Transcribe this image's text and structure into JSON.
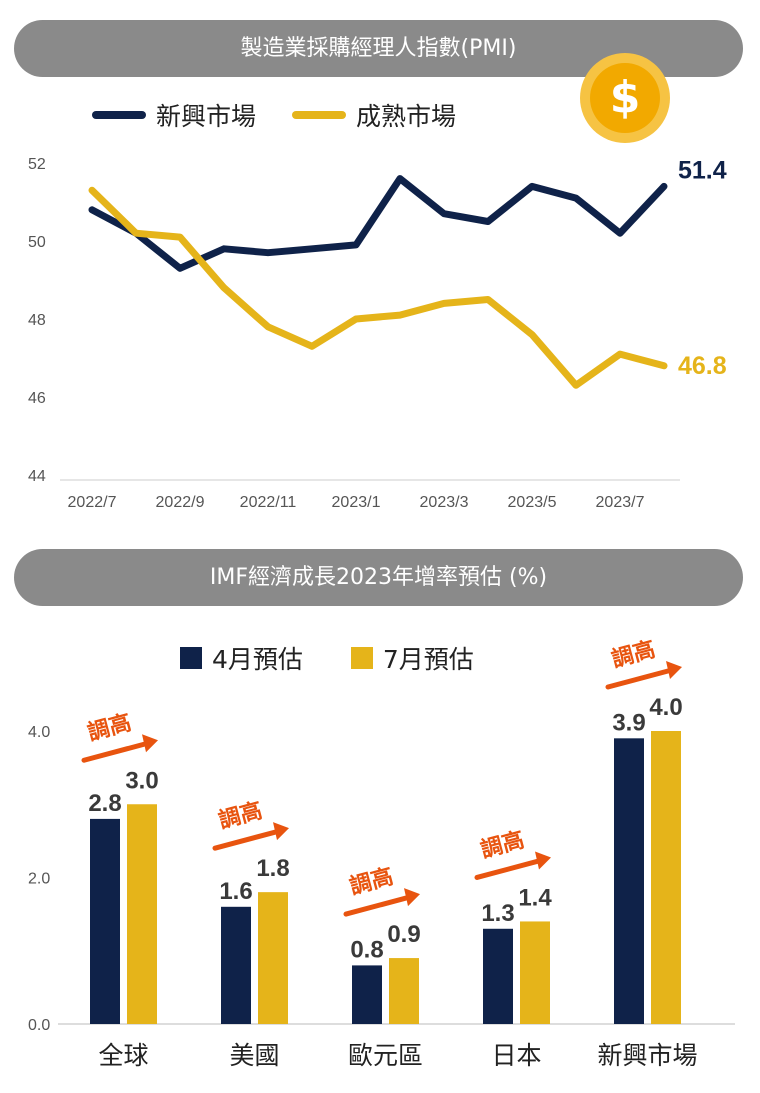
{
  "colors": {
    "emerging": "#0f2249",
    "developed": "#e5b41a",
    "arrow": "#e8540f",
    "banner": "#8a8a8a"
  },
  "coin_icon": "dollar-coin-icon",
  "coin_symbol": "$",
  "chart_data": [
    {
      "type": "line",
      "title": "製造業採購經理人指數(PMI)",
      "x": [
        "2022/7",
        "2022/8",
        "2022/9",
        "2022/10",
        "2022/11",
        "2022/12",
        "2023/1",
        "2023/2",
        "2023/3",
        "2023/4",
        "2023/5",
        "2023/6",
        "2023/7",
        "2023/8"
      ],
      "x_tick_labels": [
        "2022/7",
        "2022/9",
        "2022/11",
        "2023/1",
        "2023/3",
        "2023/5",
        "2023/7"
      ],
      "y_ticks": [
        "52",
        "50",
        "48",
        "46",
        "44"
      ],
      "ylim": [
        44,
        52
      ],
      "series": [
        {
          "name": "新興市場",
          "end_label": "51.4",
          "values": [
            50.8,
            50.2,
            49.3,
            49.8,
            49.7,
            49.8,
            49.9,
            51.6,
            50.7,
            50.5,
            51.4,
            51.1,
            50.2,
            51.4
          ]
        },
        {
          "name": "成熟市場",
          "end_label": "46.8",
          "values": [
            51.3,
            50.2,
            50.1,
            48.8,
            47.8,
            47.3,
            48.0,
            48.1,
            48.4,
            48.5,
            47.6,
            46.3,
            47.1,
            46.8
          ]
        }
      ]
    },
    {
      "type": "bar",
      "title": "IMF經濟成長2023年增率預估 (%)",
      "categories": [
        "全球",
        "美國",
        "歐元區",
        "日本",
        "新興市場"
      ],
      "y_ticks": [
        "4.0",
        "2.0",
        "0.0"
      ],
      "ylim": [
        0,
        4.0
      ],
      "series": [
        {
          "name": "4月預估",
          "values": [
            2.8,
            1.6,
            0.8,
            1.3,
            3.9
          ],
          "labels": [
            "2.8",
            "1.6",
            "0.8",
            "1.3",
            "3.9"
          ]
        },
        {
          "name": "7月預估",
          "values": [
            3.0,
            1.8,
            0.9,
            1.4,
            4.0
          ],
          "labels": [
            "3.0",
            "1.8",
            "0.9",
            "1.4",
            "4.0"
          ]
        }
      ],
      "annotation": "調高"
    }
  ]
}
